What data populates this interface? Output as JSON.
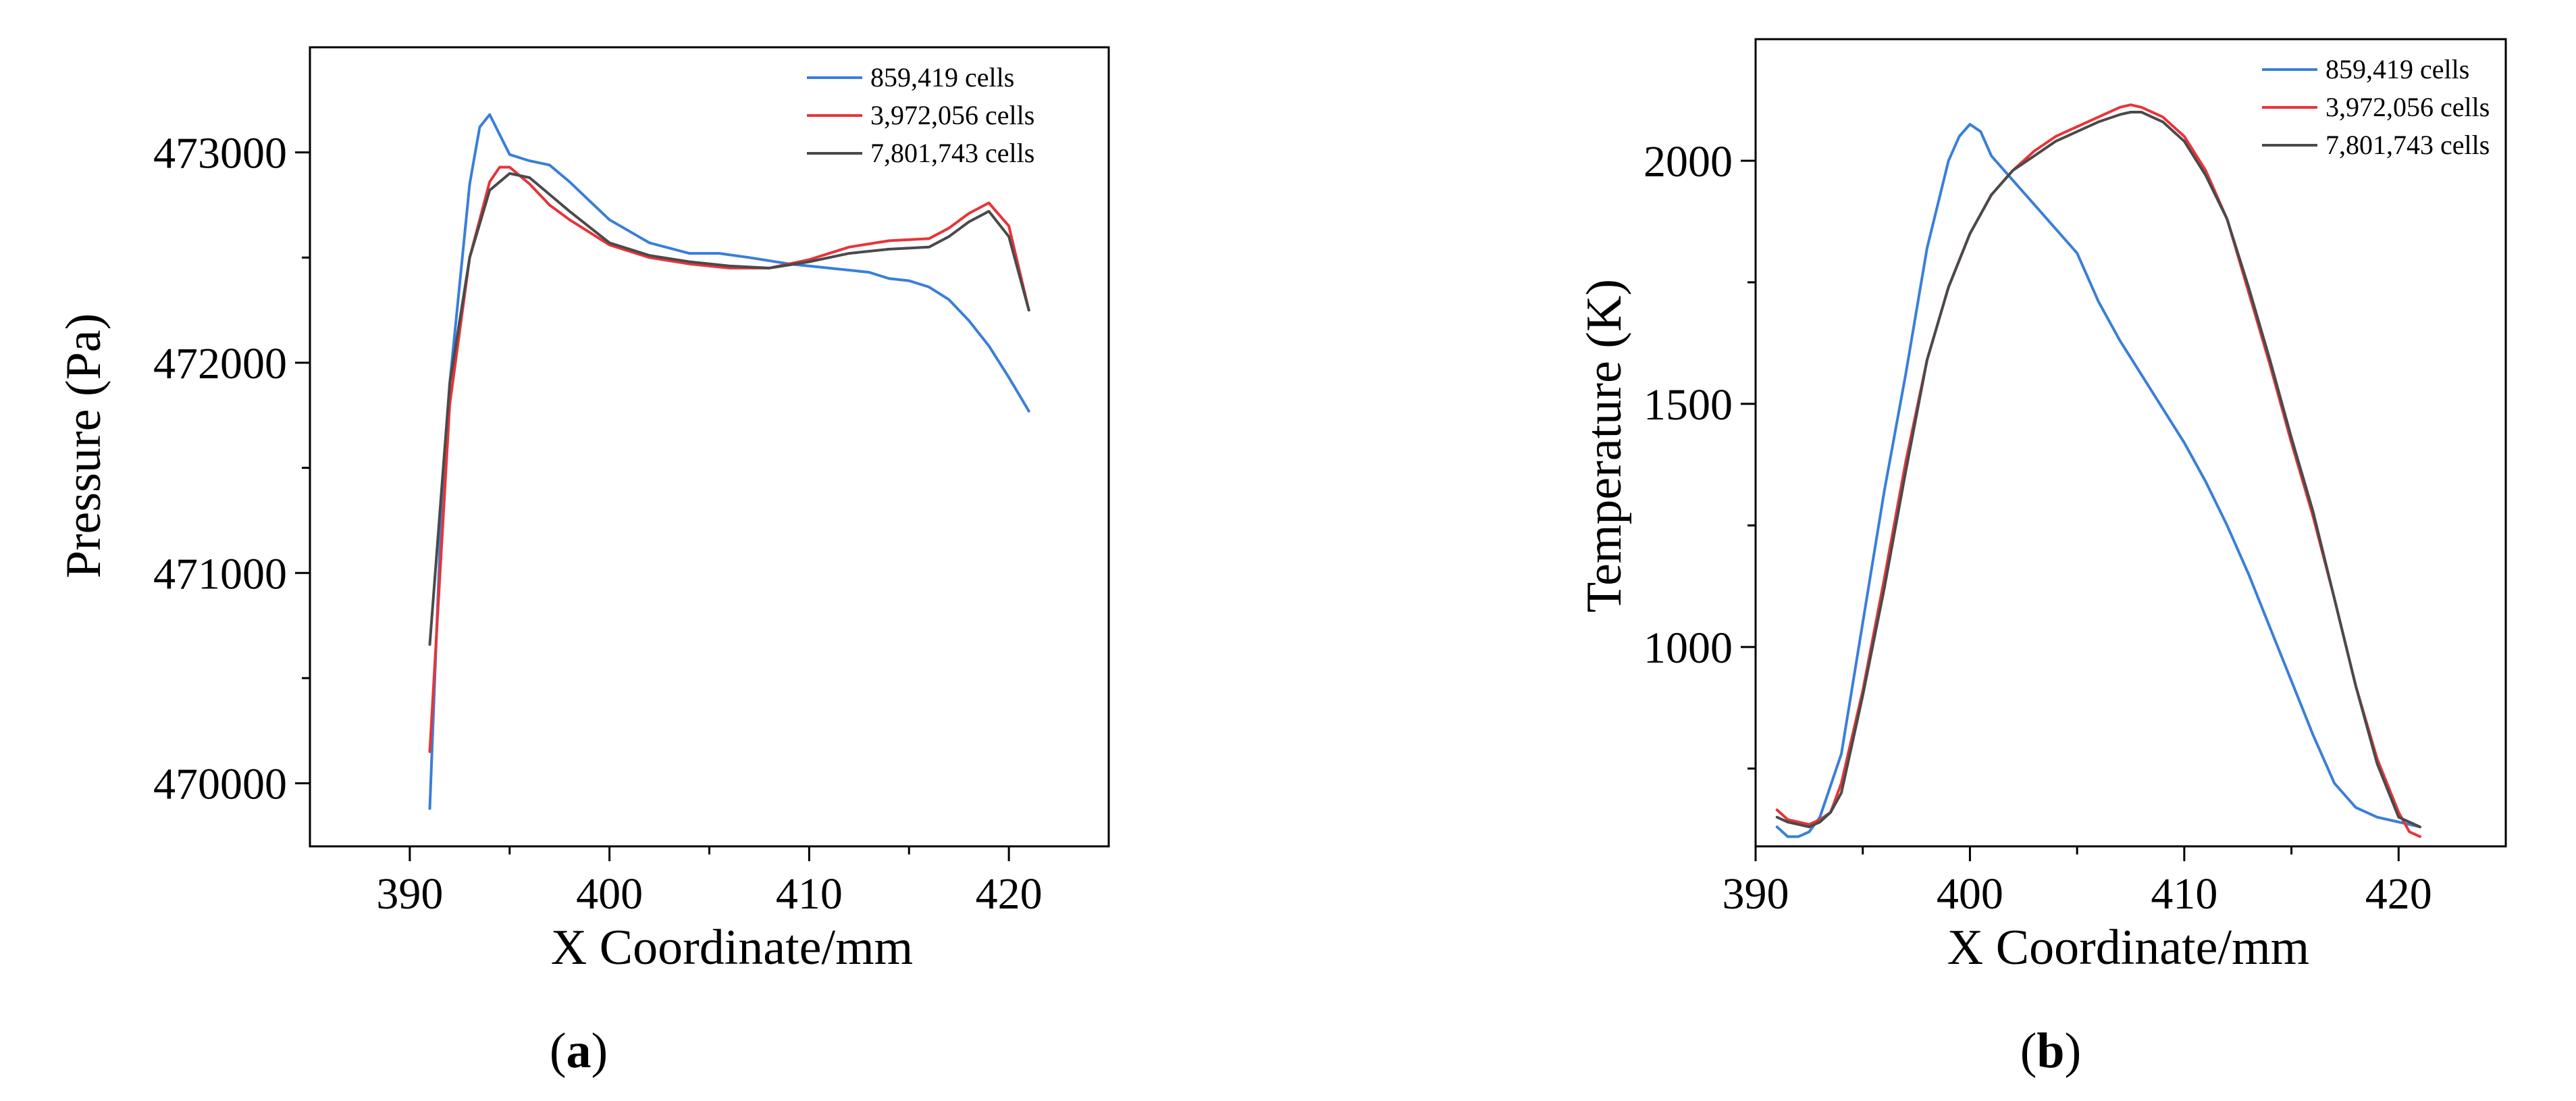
{
  "chart_data": [
    {
      "id": "a",
      "type": "line",
      "panel_label": "a",
      "xlabel": "X Coordinate/mm",
      "ylabel": "Pressure (Pa)",
      "xlim": [
        385,
        425
      ],
      "ylim": [
        469700,
        473500
      ],
      "xticks": [
        390,
        400,
        410,
        420
      ],
      "yticks": [
        470000,
        471000,
        472000,
        473000
      ],
      "legend_position": "top-right",
      "series": [
        {
          "name": "859,419 cells",
          "color": "#3a7fd9",
          "x": [
            391,
            391.5,
            392,
            393,
            393.5,
            394,
            395,
            396,
            397,
            398,
            399,
            400,
            402,
            404,
            405.5,
            407,
            409,
            411,
            413,
            414,
            415,
            416,
            417,
            418,
            419,
            420,
            421
          ],
          "y": [
            469880,
            471100,
            471900,
            472850,
            473120,
            473180,
            472990,
            472960,
            472940,
            472860,
            472770,
            472680,
            472570,
            472520,
            472520,
            472500,
            472470,
            472450,
            472430,
            472400,
            472390,
            472360,
            472300,
            472200,
            472080,
            471930,
            471770
          ]
        },
        {
          "name": "3,972,056 cells",
          "color": "#e8343a",
          "x": [
            391,
            392,
            393,
            394,
            394.5,
            395,
            396,
            397,
            398,
            400,
            402,
            404,
            406,
            408,
            410,
            412,
            414,
            416,
            417,
            418,
            419,
            420,
            421
          ],
          "y": [
            470150,
            471800,
            472500,
            472860,
            472930,
            472930,
            472850,
            472750,
            472680,
            472560,
            472500,
            472470,
            472450,
            472450,
            472490,
            472550,
            472580,
            472590,
            472640,
            472710,
            472760,
            472650,
            472250
          ]
        },
        {
          "name": "7,801,743 cells",
          "color": "#4a4a4a",
          "x": [
            391,
            392,
            393,
            394,
            395,
            396,
            397,
            398,
            400,
            402,
            404,
            406,
            408,
            410,
            412,
            414,
            416,
            417,
            418,
            419,
            420,
            421
          ],
          "y": [
            470660,
            471900,
            472500,
            472820,
            472900,
            472880,
            472800,
            472720,
            472570,
            472510,
            472480,
            472460,
            472450,
            472480,
            472520,
            472540,
            472550,
            472600,
            472670,
            472720,
            472600,
            472250
          ]
        }
      ]
    },
    {
      "id": "b",
      "type": "line",
      "panel_label": "b",
      "xlabel": "X Coordinate/mm",
      "ylabel": "Temperature (K)",
      "xlim": [
        390,
        425
      ],
      "ylim": [
        590,
        2250
      ],
      "xticks": [
        390,
        400,
        410,
        420
      ],
      "yticks": [
        1000,
        1500,
        2000
      ],
      "legend_position": "top-right",
      "series": [
        {
          "name": "859,419 cells",
          "color": "#3a7fd9",
          "x": [
            391,
            391.5,
            392,
            392.5,
            393,
            394,
            395,
            396,
            397,
            398,
            399,
            399.5,
            400,
            400.5,
            401,
            402,
            403,
            404,
            405,
            406,
            407,
            408,
            409,
            410,
            411,
            412,
            413,
            414,
            415,
            416,
            417,
            418,
            419,
            420,
            421
          ],
          "y": [
            630,
            610,
            610,
            620,
            650,
            780,
            1050,
            1320,
            1560,
            1820,
            2000,
            2050,
            2075,
            2060,
            2010,
            1960,
            1910,
            1860,
            1810,
            1710,
            1630,
            1560,
            1490,
            1420,
            1340,
            1250,
            1150,
            1040,
            930,
            820,
            720,
            670,
            650,
            640,
            630
          ]
        },
        {
          "name": "3,972,056 cells",
          "color": "#e8343a",
          "x": [
            391,
            391.5,
            392,
            392.5,
            393,
            393.5,
            394,
            395,
            396,
            397,
            398,
            399,
            400,
            401,
            402,
            403,
            404,
            405,
            406,
            407,
            407.5,
            408,
            409,
            410,
            411,
            412,
            413,
            414,
            415,
            416,
            417,
            418,
            419,
            420,
            420.5,
            421
          ],
          "y": [
            665,
            645,
            640,
            635,
            645,
            660,
            720,
            910,
            1140,
            1380,
            1590,
            1740,
            1850,
            1930,
            1980,
            2020,
            2050,
            2070,
            2090,
            2110,
            2115,
            2110,
            2090,
            2050,
            1980,
            1880,
            1730,
            1580,
            1420,
            1270,
            1100,
            920,
            770,
            660,
            620,
            610
          ]
        },
        {
          "name": "7,801,743 cells",
          "color": "#4a4a4a",
          "x": [
            391,
            391.5,
            392,
            392.5,
            393,
            393.5,
            394,
            395,
            396,
            397,
            398,
            399,
            400,
            401,
            402,
            403,
            404,
            405,
            406,
            407,
            407.5,
            408,
            409,
            410,
            411,
            412,
            413,
            414,
            415,
            416,
            417,
            418,
            419,
            420,
            421
          ],
          "y": [
            650,
            640,
            635,
            630,
            640,
            660,
            700,
            900,
            1120,
            1360,
            1590,
            1740,
            1850,
            1930,
            1980,
            2010,
            2040,
            2060,
            2080,
            2095,
            2100,
            2100,
            2080,
            2040,
            1970,
            1880,
            1740,
            1590,
            1430,
            1280,
            1100,
            920,
            760,
            650,
            630
          ]
        }
      ]
    }
  ]
}
